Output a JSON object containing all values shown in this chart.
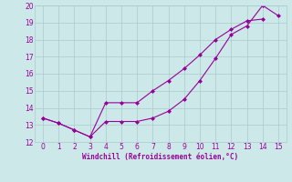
{
  "xlabel": "Windchill (Refroidissement éolien,°C)",
  "line1_x": [
    0,
    1,
    2,
    3,
    4,
    5,
    6,
    7,
    8,
    9,
    10,
    11,
    12,
    13,
    14,
    15
  ],
  "line1_y": [
    13.4,
    13.1,
    12.7,
    12.3,
    13.2,
    13.2,
    13.2,
    13.4,
    13.8,
    14.5,
    15.6,
    16.9,
    18.3,
    18.8,
    20.0,
    19.4
  ],
  "line2_x": [
    0,
    1,
    2,
    3,
    4,
    5,
    6,
    7,
    8,
    9,
    10,
    11,
    12,
    13,
    14
  ],
  "line2_y": [
    13.4,
    13.1,
    12.7,
    12.3,
    14.3,
    14.3,
    14.3,
    15.0,
    15.6,
    16.3,
    17.1,
    18.0,
    18.6,
    19.1,
    19.2
  ],
  "color": "#990099",
  "xlim": [
    -0.5,
    15.5
  ],
  "ylim": [
    12,
    20
  ],
  "xticks": [
    0,
    1,
    2,
    3,
    4,
    5,
    6,
    7,
    8,
    9,
    10,
    11,
    12,
    13,
    14,
    15
  ],
  "yticks": [
    12,
    13,
    14,
    15,
    16,
    17,
    18,
    19,
    20
  ],
  "bg_color": "#cce8e8",
  "grid_color": "#aacccc"
}
